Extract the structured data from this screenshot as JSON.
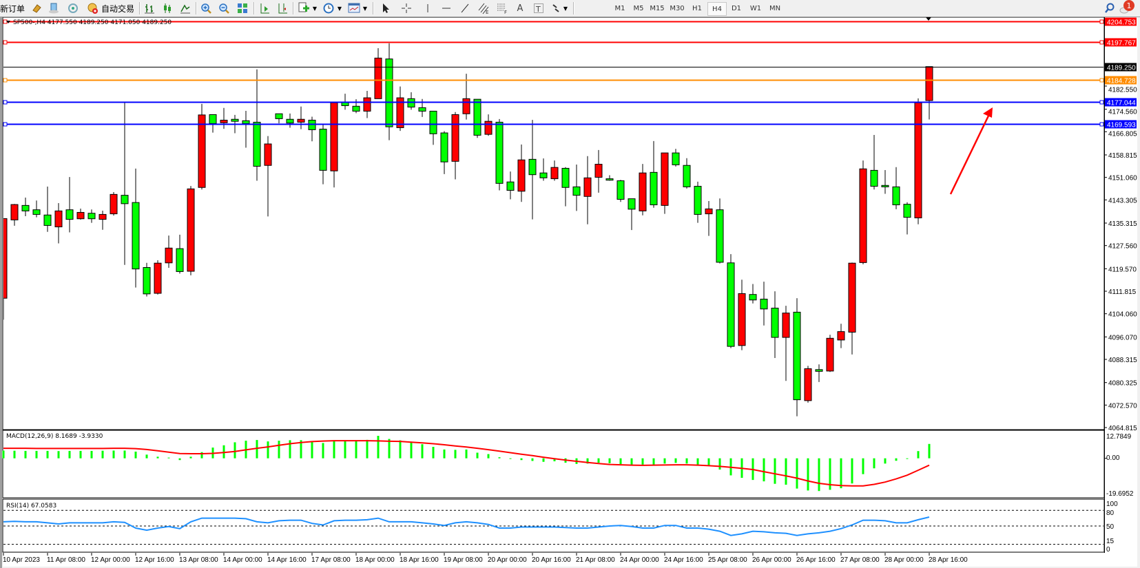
{
  "toolbar": {
    "new_order": "新订单",
    "auto_trading": "自动交易",
    "periods": [
      "M1",
      "M5",
      "M15",
      "M30",
      "H1",
      "H4",
      "D1",
      "W1",
      "MN"
    ],
    "active_period": "H4",
    "icons": [
      "market-watch-icon",
      "data-window-icon",
      "navigator-icon",
      "bar-chart-icon",
      "candlestick-chart-icon",
      "line-chart-icon",
      "zoom-in-icon",
      "zoom-out-icon",
      "tile-windows-icon",
      "auto-scroll-icon",
      "chart-shift-icon",
      "indicators-icon",
      "periods-clock-icon",
      "templates-icon",
      "cursor-icon",
      "crosshair-icon",
      "vertical-line-icon",
      "horizontal-line-icon",
      "trendline-icon",
      "equidistant-channel-icon",
      "fibonacci-icon",
      "text-icon",
      "text-label-icon",
      "arrows-icon",
      "search-icon",
      "notifications-icon"
    ],
    "notification_count": "1"
  },
  "chart": {
    "header": "SP500-,H4  4177.550 4189.250 4171.050 4189.250",
    "symbol": "SP500-",
    "timeframe": "H4",
    "ohlc": {
      "open": 4177.55,
      "high": 4189.25,
      "low": 4171.05,
      "close": 4189.25
    },
    "bull_color": "#ff0000",
    "bear_color": "#00ff00",
    "bid_price_label": "4189.250",
    "price_ticks": [
      "4182.550",
      "4174.560",
      "4166.805",
      "4158.815",
      "4151.060",
      "4143.305",
      "4135.315",
      "4127.560",
      "4119.570",
      "4111.815",
      "4104.060",
      "4096.070",
      "4088.315",
      "4080.325",
      "4072.570",
      "4064.815"
    ],
    "hlines": [
      {
        "price": 4204.753,
        "label": "4204.753",
        "color": "#ff0000"
      },
      {
        "price": 4197.767,
        "label": "4197.767",
        "color": "#ff0000"
      },
      {
        "price": 4184.728,
        "label": "4184.728",
        "color": "#ff8c00"
      },
      {
        "price": 4177.044,
        "label": "4177.044",
        "color": "#0000ff"
      },
      {
        "price": 4169.593,
        "label": "4169.593",
        "color": "#0000ff"
      }
    ],
    "arrow_color": "#ff0000",
    "time_labels": [
      "10 Apr 2023",
      "11 Apr 08:00",
      "12 Apr 00:00",
      "12 Apr 16:00",
      "13 Apr 08:00",
      "14 Apr 00:00",
      "14 Apr 16:00",
      "17 Apr 08:00",
      "18 Apr 00:00",
      "18 Apr 16:00",
      "19 Apr 08:00",
      "20 Apr 00:00",
      "20 Apr 16:00",
      "21 Apr 08:00",
      "24 Apr 00:00",
      "24 Apr 16:00",
      "25 Apr 08:00",
      "26 Apr 00:00",
      "26 Apr 16:00",
      "27 Apr 08:00",
      "28 Apr 00:00",
      "28 Apr 16:00"
    ]
  },
  "macd": {
    "label": "MACD(12,26,9) 8.1689 -3.9330",
    "axis_labels": [
      "12.7849",
      "0.00",
      "-19.6952"
    ],
    "range": [
      -19.6952,
      12.7849
    ],
    "hist_color": "#00ff00",
    "signal_color": "#ff0000"
  },
  "rsi": {
    "label": "RSI(14) 67.0583",
    "axis_labels": [
      "100",
      "80",
      "50",
      "15",
      "0"
    ],
    "levels": [
      80,
      50,
      15
    ],
    "color": "#1e90ff"
  },
  "chart_data": {
    "type": "candlestick",
    "x_label_every": 4,
    "ohlc": [
      [
        4109.4,
        4136.9,
        4102.0,
        4136.85
      ],
      [
        4136.4,
        4141.9,
        4134.4,
        4141.7
      ],
      [
        4141.4,
        4144.1,
        4137.7,
        4139.5
      ],
      [
        4139.9,
        4143.1,
        4137.3,
        4138.3
      ],
      [
        4138.1,
        4147.9,
        4132.3,
        4134.5
      ],
      [
        4134.0,
        4142.2,
        4128.3,
        4139.5
      ],
      [
        4139.9,
        4151.2,
        4132.1,
        4136.6
      ],
      [
        4136.8,
        4140.3,
        4136.5,
        4139.0
      ],
      [
        4138.7,
        4140.0,
        4135.4,
        4136.8
      ],
      [
        4136.6,
        4139.6,
        4133.0,
        4138.3
      ],
      [
        4138.5,
        4146.0,
        4137.9,
        4145.2
      ],
      [
        4144.9,
        4176.8,
        4120.9,
        4142.0
      ],
      [
        4142.4,
        4154.1,
        4113.1,
        4119.5
      ],
      [
        4120.0,
        4121.6,
        4110.0,
        4110.9
      ],
      [
        4111.1,
        4122.5,
        4110.7,
        4121.5
      ],
      [
        4121.6,
        4131.0,
        4119.9,
        4126.7
      ],
      [
        4126.5,
        4131.3,
        4117.9,
        4118.6
      ],
      [
        4118.7,
        4148.1,
        4117.3,
        4147.1
      ],
      [
        4147.6,
        4176.4,
        4146.9,
        4172.6
      ],
      [
        4172.7,
        4172.7,
        4166.5,
        4169.6
      ],
      [
        4169.9,
        4175.0,
        4167.8,
        4170.8
      ],
      [
        4171.1,
        4172.6,
        4166.3,
        4170.4
      ],
      [
        4170.6,
        4174.0,
        4161.3,
        4169.6
      ],
      [
        4170.1,
        4188.3,
        4149.9,
        4154.9
      ],
      [
        4155.2,
        4165.3,
        4137.6,
        4162.6
      ],
      [
        4173.0,
        4173.0,
        4169.7,
        4171.3
      ],
      [
        4171.1,
        4173.1,
        4168.2,
        4169.8
      ],
      [
        4170.1,
        4175.5,
        4167.7,
        4171.1
      ],
      [
        4170.8,
        4172.0,
        4163.5,
        4167.5
      ],
      [
        4167.7,
        4169.3,
        4148.7,
        4153.5
      ],
      [
        4153.3,
        4176.8,
        4147.6,
        4176.8
      ],
      [
        4176.9,
        4179.9,
        4174.4,
        4175.8
      ],
      [
        4175.6,
        4178.0,
        4173.2,
        4173.9
      ],
      [
        4173.9,
        4180.9,
        4171.5,
        4178.5
      ],
      [
        4178.2,
        4195.6,
        4178.2,
        4192.2
      ],
      [
        4191.9,
        4197.3,
        4163.9,
        4168.5
      ],
      [
        4168.2,
        4182.4,
        4167.1,
        4178.5
      ],
      [
        4178.2,
        4180.4,
        4174.4,
        4175.3
      ],
      [
        4175.1,
        4178.1,
        4171.9,
        4173.9
      ],
      [
        4173.9,
        4173.9,
        4162.3,
        4166.1
      ],
      [
        4166.4,
        4167.0,
        4152.2,
        4156.4
      ],
      [
        4156.6,
        4173.6,
        4150.4,
        4172.7
      ],
      [
        4173.0,
        4186.8,
        4171.0,
        4178.2
      ],
      [
        4178.0,
        4178.0,
        4164.7,
        4165.6
      ],
      [
        4165.9,
        4172.8,
        4165.4,
        4170.4
      ],
      [
        4170.1,
        4171.2,
        4146.6,
        4149.0
      ],
      [
        4149.5,
        4153.1,
        4143.5,
        4146.6
      ],
      [
        4146.3,
        4162.4,
        4142.6,
        4157.1
      ],
      [
        4157.3,
        4170.9,
        4136.6,
        4152.0
      ],
      [
        4152.6,
        4157.6,
        4149.9,
        4150.9
      ],
      [
        4150.6,
        4156.9,
        4149.9,
        4154.5
      ],
      [
        4154.2,
        4154.6,
        4141.1,
        4147.6
      ],
      [
        4147.8,
        4155.5,
        4139.5,
        4144.9
      ],
      [
        4144.5,
        4158.4,
        4134.9,
        4150.9
      ],
      [
        4151.1,
        4160.5,
        4145.8,
        4155.6
      ],
      [
        4150.6,
        4151.8,
        4149.9,
        4150.1
      ],
      [
        4149.9,
        4150.2,
        4142.6,
        4143.5
      ],
      [
        4143.7,
        4143.7,
        4132.9,
        4140.1
      ],
      [
        4139.5,
        4155.7,
        4138.0,
        4152.6
      ],
      [
        4152.8,
        4163.6,
        4140.6,
        4141.6
      ],
      [
        4141.4,
        4159.5,
        4138.5,
        4159.5
      ],
      [
        4159.5,
        4160.9,
        4154.8,
        4155.4
      ],
      [
        4155.2,
        4157.7,
        4147.2,
        4147.8
      ],
      [
        4148.0,
        4149.6,
        4135.4,
        4138.3
      ],
      [
        4138.5,
        4142.9,
        4130.9,
        4140.2
      ],
      [
        4139.9,
        4143.8,
        4121.4,
        4121.8
      ],
      [
        4121.6,
        4124.6,
        4092.2,
        4092.8
      ],
      [
        4093.1,
        4115.8,
        4091.5,
        4111.0
      ],
      [
        4110.7,
        4114.3,
        4107.6,
        4108.8
      ],
      [
        4109.1,
        4115.1,
        4100.0,
        4105.7
      ],
      [
        4106.0,
        4111.8,
        4088.8,
        4095.9
      ],
      [
        4095.9,
        4106.8,
        4080.9,
        4104.3
      ],
      [
        4104.6,
        4109.4,
        4068.7,
        4074.4
      ],
      [
        4074.1,
        4086.1,
        4073.4,
        4085.1
      ],
      [
        4084.8,
        4086.6,
        4080.5,
        4084.2
      ],
      [
        4084.3,
        4096.8,
        4084.0,
        4095.6
      ],
      [
        4095.0,
        4100.6,
        4092.2,
        4097.9
      ],
      [
        4097.7,
        4121.7,
        4090.0,
        4121.5
      ],
      [
        4121.7,
        4156.9,
        4121.1,
        4154.0
      ],
      [
        4153.5,
        4165.7,
        4146.9,
        4148.0
      ],
      [
        4148.3,
        4153.6,
        4145.4,
        4147.8
      ],
      [
        4147.8,
        4154.6,
        4140.1,
        4141.6
      ],
      [
        4141.8,
        4142.5,
        4131.4,
        4137.3
      ],
      [
        4137.1,
        4178.3,
        4134.9,
        4176.8
      ],
      [
        4177.55,
        4189.25,
        4171.05,
        4189.25
      ]
    ],
    "macd_hist": [
      4.4,
      4.3,
      4.2,
      4.2,
      4.2,
      4.1,
      4.2,
      4.2,
      4.2,
      4.3,
      4.4,
      4.4,
      3.8,
      2.1,
      0.9,
      0.4,
      -1.0,
      0.9,
      3.5,
      6.1,
      7.4,
      9.1,
      10.0,
      10.4,
      9.6,
      10.0,
      10.3,
      10.3,
      9.7,
      8.7,
      9.7,
      10.3,
      10.3,
      10.5,
      12.78,
      11.0,
      10.2,
      9.5,
      8.0,
      6.5,
      5.0,
      4.8,
      5.0,
      3.2,
      2.4,
      0.6,
      -0.3,
      -1.0,
      -1.5,
      -2.0,
      -1.7,
      -2.5,
      -3.2,
      -3.0,
      -2.5,
      -2.8,
      -3.3,
      -4.0,
      -3.6,
      -3.8,
      -3.0,
      -2.6,
      -3.0,
      -3.7,
      -4.3,
      -6.4,
      -9.7,
      -11.1,
      -12.3,
      -13.1,
      -14.5,
      -15.0,
      -17.2,
      -18.3,
      -18.6,
      -17.9,
      -17.0,
      -14.3,
      -9.0,
      -5.7,
      -3.0,
      -1.4,
      -0.3,
      4.1,
      8.1689
    ],
    "macd_signal": [
      5.7,
      5.7,
      5.7,
      5.6,
      5.6,
      5.6,
      5.6,
      5.6,
      5.6,
      5.6,
      5.7,
      5.7,
      5.5,
      5.0,
      4.3,
      3.5,
      2.7,
      2.6,
      2.6,
      2.8,
      3.3,
      3.9,
      4.8,
      5.7,
      6.5,
      7.4,
      8.3,
      9.0,
      9.5,
      9.8,
      10.0,
      10.0,
      10.0,
      10.0,
      9.9,
      9.7,
      9.6,
      9.2,
      8.8,
      8.3,
      7.7,
      7.0,
      6.4,
      5.7,
      4.9,
      4.1,
      3.2,
      2.3,
      1.5,
      0.6,
      -0.2,
      -1.0,
      -1.7,
      -2.4,
      -3.0,
      -3.5,
      -3.7,
      -3.9,
      -4.0,
      -3.9,
      -3.8,
      -3.7,
      -3.7,
      -3.9,
      -4.2,
      -4.6,
      -5.1,
      -5.7,
      -6.4,
      -7.6,
      -8.8,
      -10.0,
      -11.3,
      -12.9,
      -14.2,
      -15.0,
      -15.5,
      -15.7,
      -15.7,
      -14.8,
      -13.5,
      -11.7,
      -9.6,
      -6.8,
      -3.933
    ],
    "rsi": [
      58,
      59,
      58,
      58,
      56,
      54,
      56,
      56,
      56,
      56,
      58,
      57,
      46,
      42,
      46,
      49,
      45,
      58,
      65,
      65,
      65,
      65,
      64,
      58,
      56,
      60,
      61,
      61,
      55,
      52,
      60,
      61,
      61,
      62,
      65,
      58,
      58,
      58,
      56,
      54,
      51,
      56,
      58,
      56,
      53,
      46,
      46,
      48,
      48,
      48,
      48,
      47,
      46,
      46,
      48,
      50,
      51,
      49,
      46,
      46,
      51,
      51,
      46,
      46,
      44,
      40,
      32,
      35,
      40,
      39,
      37,
      36,
      32,
      35,
      37,
      40,
      45,
      52,
      61,
      61,
      60,
      56,
      56,
      62,
      67.0583
    ]
  }
}
